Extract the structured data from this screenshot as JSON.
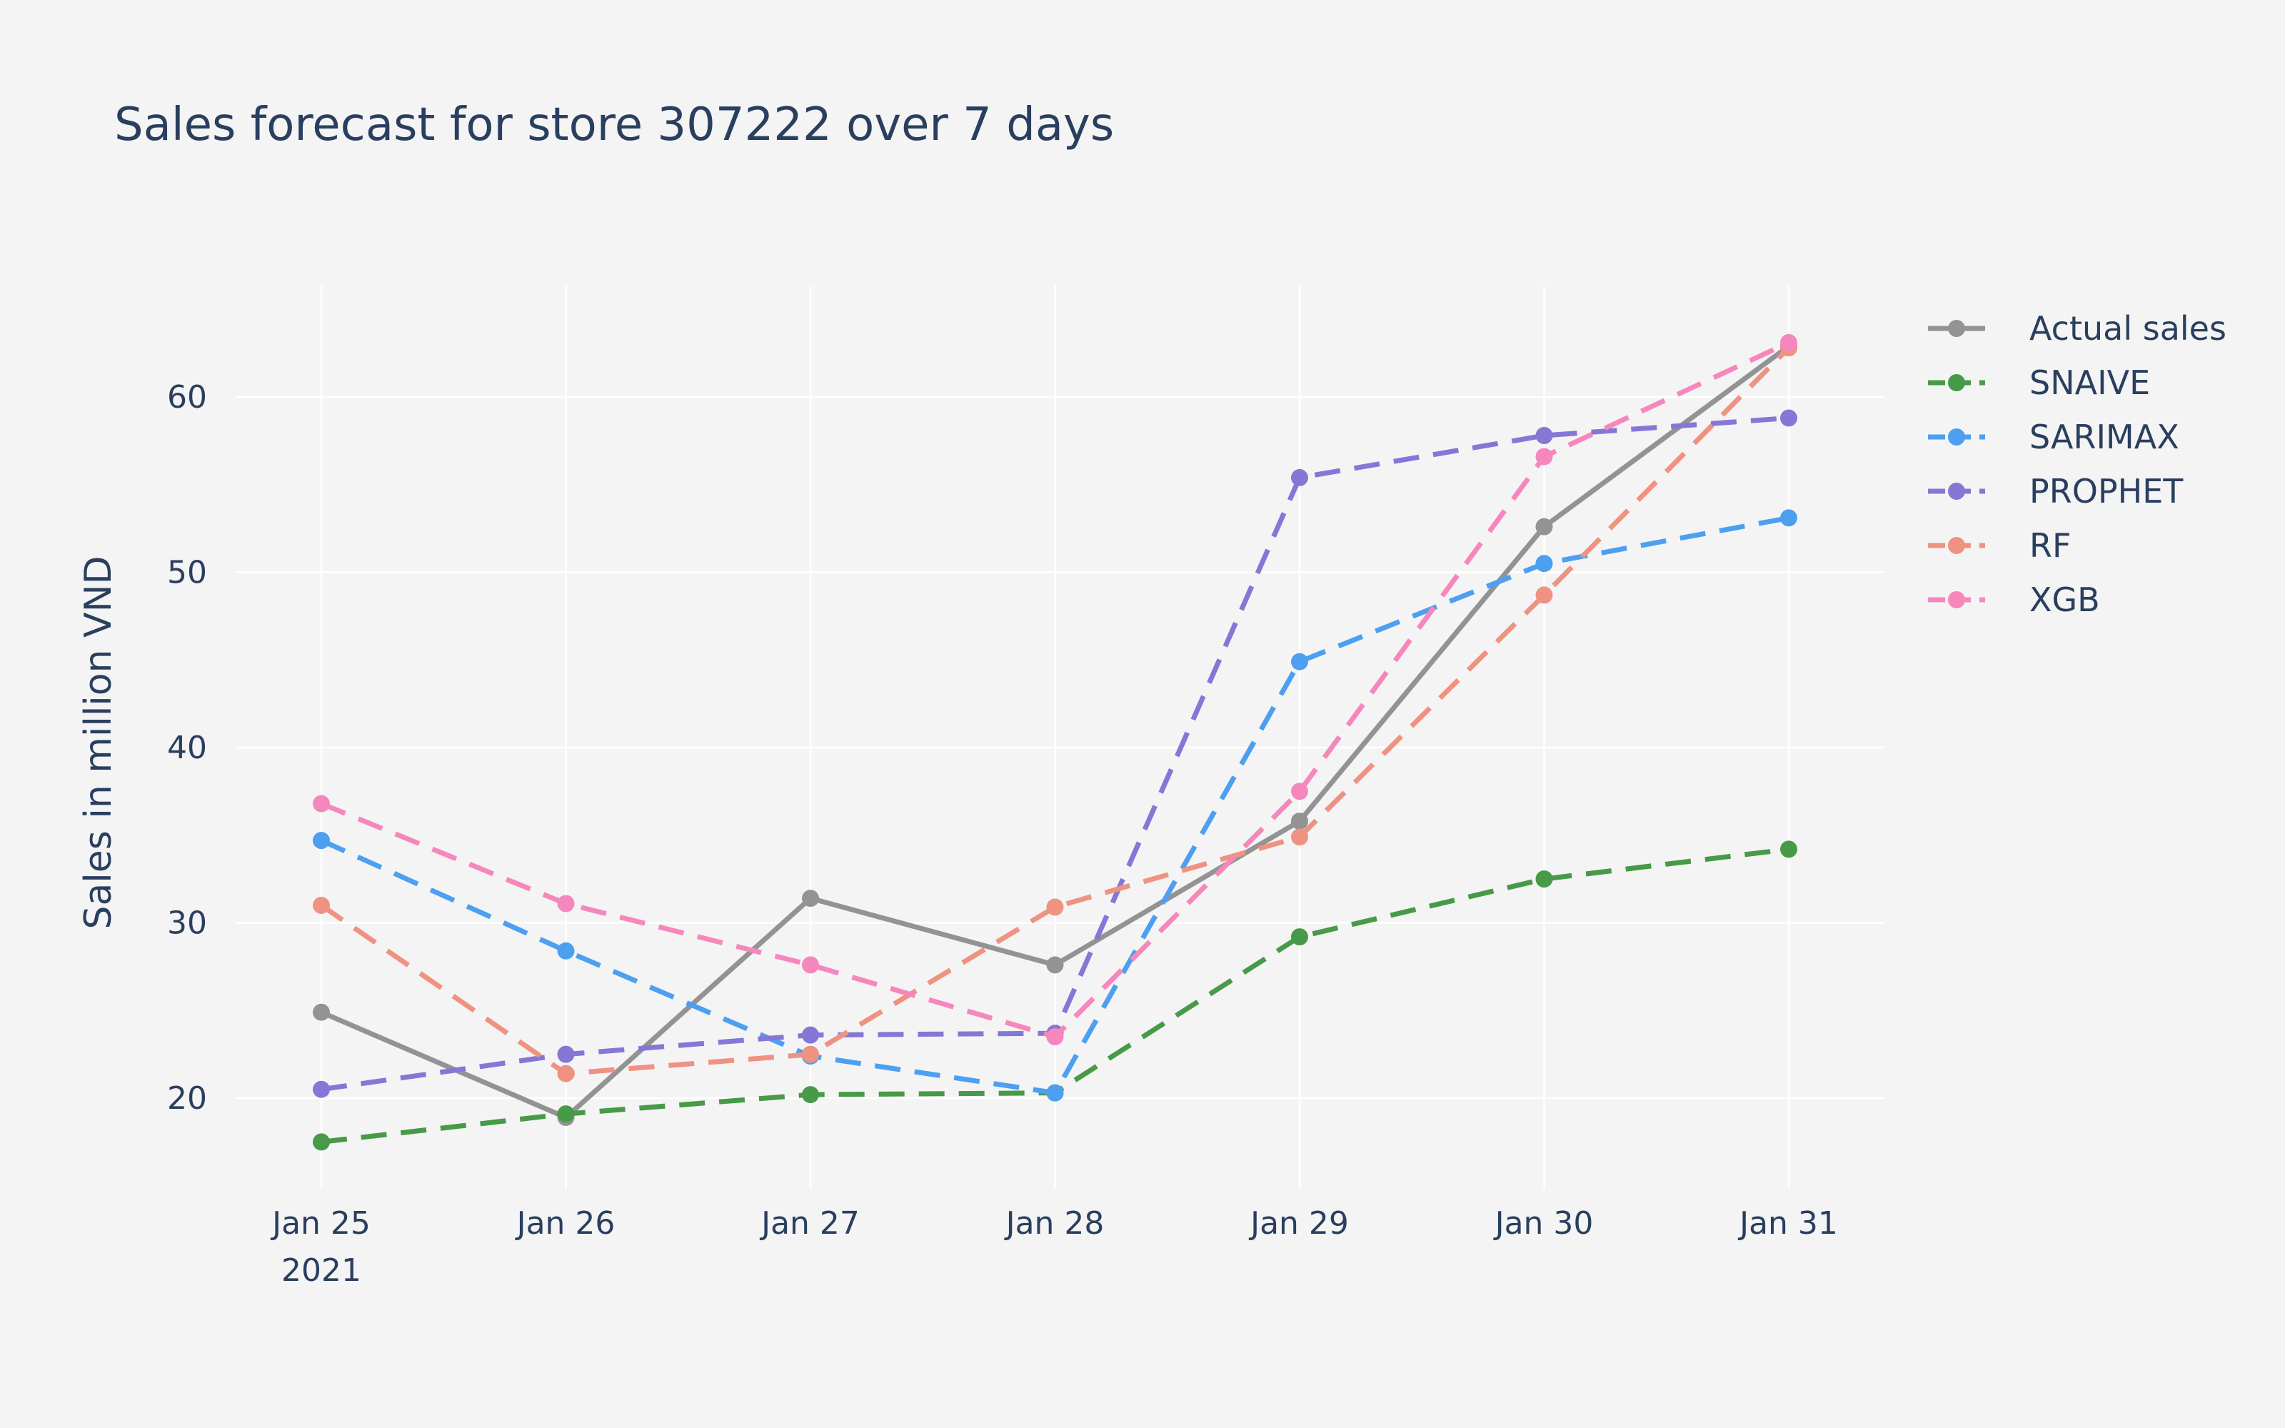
{
  "chart_data": {
    "type": "line",
    "title": "Sales forecast for store 307222 over 7 days",
    "xlabel": "",
    "ylabel": "Sales in million VND",
    "x": [
      "Jan 25",
      "Jan 26",
      "Jan 27",
      "Jan 28",
      "Jan 29",
      "Jan 30",
      "Jan 31"
    ],
    "x_year_label": "2021",
    "yticks": [
      20,
      30,
      40,
      50,
      60
    ],
    "ylim": [
      14.5,
      66.2
    ],
    "grid": true,
    "legend_position": "right",
    "series": [
      {
        "name": "Actual sales",
        "color": "#939393",
        "dash": "solid",
        "values": [
          24.9,
          18.9,
          31.4,
          27.6,
          35.8,
          52.6,
          62.9
        ]
      },
      {
        "name": "SNAIVE",
        "color": "#479a47",
        "dash": "dash",
        "values": [
          17.5,
          19.1,
          20.2,
          20.3,
          29.2,
          32.5,
          34.2
        ]
      },
      {
        "name": "SARIMAX",
        "color": "#4d9ff0",
        "dash": "dash",
        "values": [
          34.7,
          28.4,
          22.4,
          20.3,
          44.9,
          50.5,
          53.1
        ]
      },
      {
        "name": "PROPHET",
        "color": "#8477d6",
        "dash": "dash",
        "values": [
          20.5,
          22.5,
          23.6,
          23.7,
          55.4,
          57.8,
          58.8
        ]
      },
      {
        "name": "RF",
        "color": "#ef9282",
        "dash": "dash",
        "values": [
          31.0,
          21.4,
          22.5,
          30.9,
          34.9,
          48.7,
          62.8
        ]
      },
      {
        "name": "XGB",
        "color": "#f687bd",
        "dash": "dash",
        "values": [
          36.8,
          31.1,
          27.6,
          23.5,
          37.5,
          56.6,
          63.1
        ]
      }
    ]
  }
}
